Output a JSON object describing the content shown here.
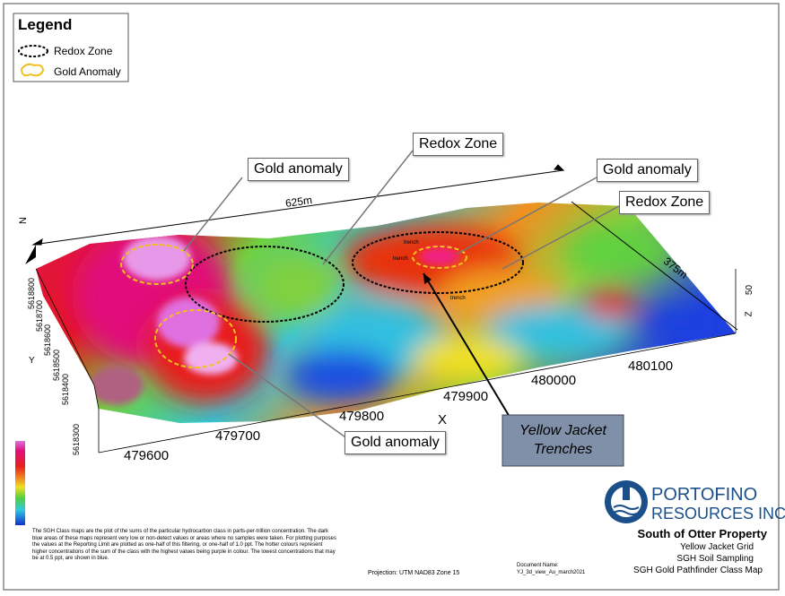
{
  "legend": {
    "title": "Legend",
    "items": [
      "Redox Zone",
      "Gold Anomaly"
    ]
  },
  "callouts": [
    "Gold anomaly",
    "Redox Zone",
    "Gold anomaly",
    "Redox Zone",
    "Gold anomaly"
  ],
  "dimensions": [
    "625m",
    "375m"
  ],
  "x_axis": {
    "label": "X",
    "ticks": [
      "479600",
      "479700",
      "479800",
      "479900",
      "480000",
      "480100"
    ]
  },
  "y_axis": {
    "label": "Y",
    "ticks": [
      "5618800",
      "5618700",
      "5618600",
      "5618500",
      "5618400",
      "5618300"
    ]
  },
  "z_axis": {
    "label": "Z",
    "tick": "50"
  },
  "north": "N",
  "trench_labels": [
    "trench",
    "trench",
    "trench"
  ],
  "trenches_box": "Yellow Jacket Trenches",
  "company": {
    "line1": "PORTOFINO",
    "line2": "RESOURCES INC."
  },
  "title_block": {
    "title": "South of Otter Property",
    "lines": [
      "Yellow Jacket Grid",
      "SGH Soil Sampling",
      "SGH Gold Pathfinder Class Map"
    ]
  },
  "note": "The SGH Class maps are the plot of the sums of the particular hydrocarbon class in parts-per-trillion concentration. The dark blue areas of these maps represent very low or non-detect values or areas where no samples were taken. For plotting purposes the values at the Reporting Limit are plotted as one-half of this filtering, or one-half of 1.0 ppt. The hotter colours represent higher concentrations of the sum of the class with the highest values being purple in colour. The lowest concentrations that may be at 0.5 ppt, are shown in blue.",
  "projection": "Projection: UTM NAD83 Zone 15",
  "document": {
    "label": "Document Name:",
    "name": "YJ_3d_view_Au_march2021"
  }
}
